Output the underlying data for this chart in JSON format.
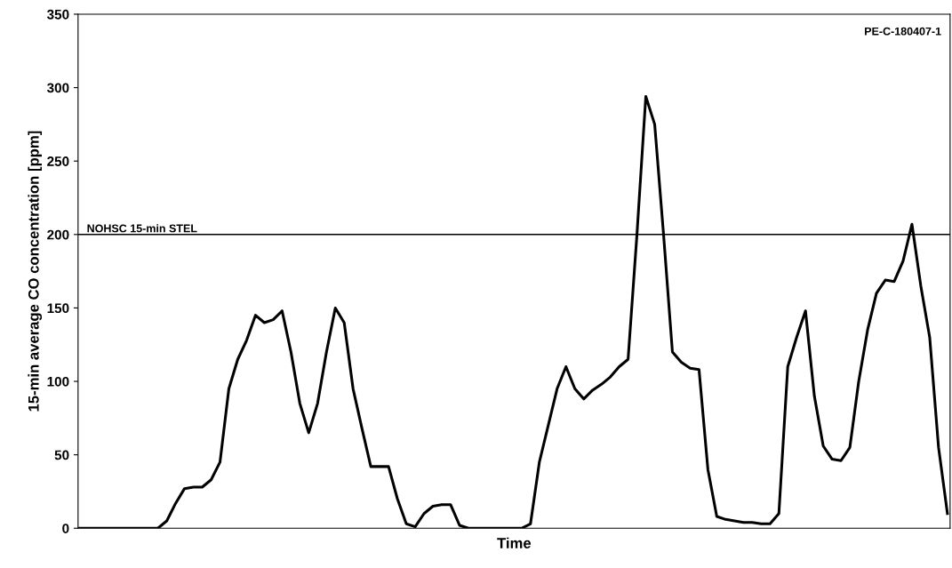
{
  "chart_data": {
    "type": "line",
    "xlabel": "Time",
    "ylabel": "15-min average CO concentration [ppm]",
    "categories": [
      null,
      null,
      null,
      null,
      null,
      null,
      null,
      null,
      null,
      null,
      null,
      null,
      null,
      null,
      null,
      null,
      null,
      null,
      null,
      null,
      null,
      null,
      null,
      null,
      null,
      null,
      null,
      null,
      null,
      null,
      null,
      null,
      null,
      null,
      null,
      null,
      null,
      null,
      null,
      null,
      null,
      null,
      null,
      null,
      null,
      null,
      null,
      null,
      null,
      null,
      null,
      null,
      null,
      null,
      null,
      null,
      null,
      null,
      null,
      null,
      null,
      null,
      null,
      null,
      null,
      null,
      null,
      null,
      null,
      null,
      null,
      null,
      null,
      null,
      null,
      null,
      null,
      null,
      null,
      null,
      null,
      null,
      null,
      null,
      null,
      null,
      null,
      null,
      null,
      null,
      null,
      null,
      null,
      null,
      null,
      null,
      null,
      null,
      null
    ],
    "series": [
      {
        "color": "#000000",
        "values": [
          0,
          0,
          0,
          0,
          0,
          0,
          0,
          0,
          0,
          0,
          5,
          17,
          27,
          28,
          28,
          33,
          45,
          95,
          115,
          128,
          145,
          140,
          142,
          148,
          120,
          85,
          65,
          85,
          120,
          150,
          140,
          95,
          68,
          42,
          42,
          42,
          20,
          3,
          1,
          10,
          15,
          16,
          16,
          2,
          0,
          0,
          0,
          0,
          0,
          0,
          0,
          3,
          45,
          70,
          95,
          110,
          95,
          88,
          94,
          98,
          103,
          110,
          115,
          200,
          294,
          275,
          200,
          120,
          113,
          109,
          108,
          40,
          8,
          6,
          5,
          4,
          4,
          3,
          3,
          10,
          110,
          130,
          148,
          90,
          56,
          47,
          46,
          55,
          100,
          135,
          160,
          169,
          168,
          182,
          207,
          165,
          130,
          55,
          10
        ]
      }
    ],
    "ylim": [
      0,
      350
    ],
    "yticks": [
      0,
      50,
      100,
      150,
      200,
      250,
      300,
      350
    ],
    "grid": false,
    "legend": false,
    "marker": "none",
    "line_style": "solid",
    "ref_lines": [
      {
        "axis": "y",
        "value": 200,
        "label": "NOHSC 15-min STEL",
        "color": "#000000",
        "line_style": "solid"
      }
    ],
    "annotations": [
      "PE-C-180407-1"
    ]
  }
}
